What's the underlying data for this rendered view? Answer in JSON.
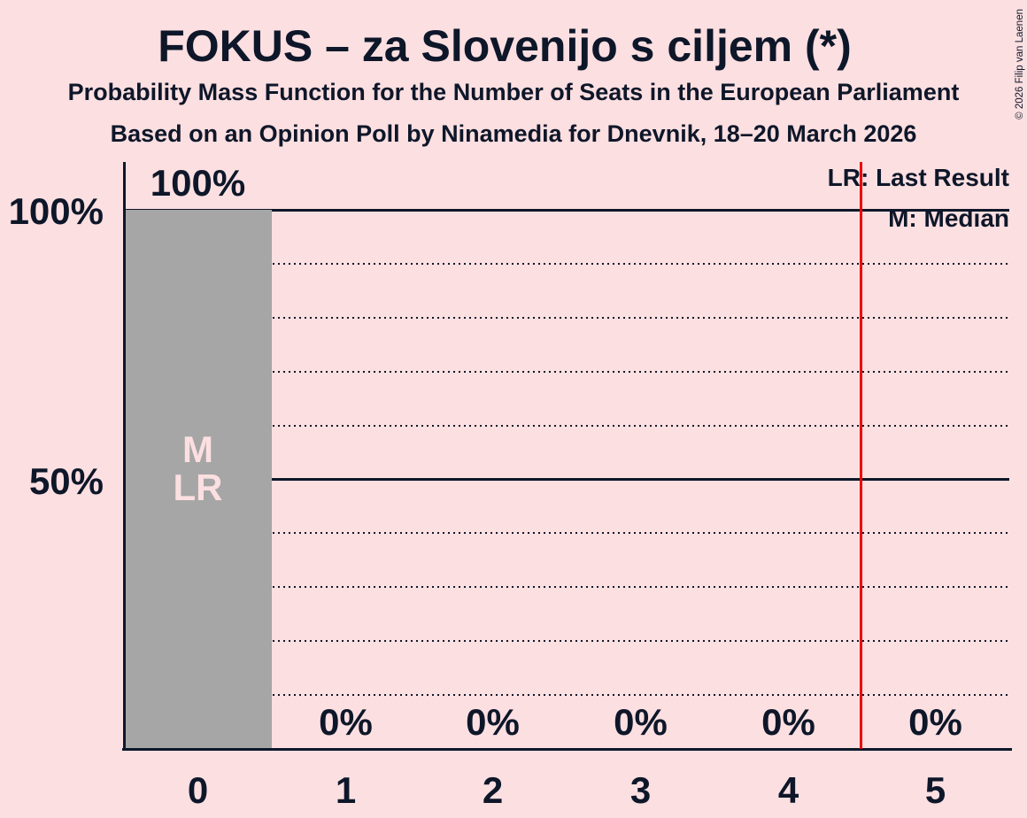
{
  "meta": {
    "copyright": "© 2026 Filip van Laenen"
  },
  "header": {
    "title": "FOKUS – za Slovenijo s ciljem (*)",
    "subtitle1": "Probability Mass Function for the Number of Seats in the European Parliament",
    "subtitle2": "Based on an Opinion Poll by Ninamedia for Dnevnik, 18–20 March 2026"
  },
  "legend": {
    "lr_label": "LR: Last Result",
    "m_label": "M: Median"
  },
  "chart_data": {
    "type": "bar",
    "title": "FOKUS – za Slovenijo s ciljem (*)",
    "xlabel": "",
    "ylabel": "",
    "categories": [
      "0",
      "1",
      "2",
      "3",
      "4",
      "5"
    ],
    "values": [
      100,
      0,
      0,
      0,
      0,
      0
    ],
    "value_labels": [
      "100%",
      "0%",
      "0%",
      "0%",
      "0%",
      "0%"
    ],
    "ylim": [
      0,
      100
    ],
    "ytick_values": [
      100,
      50
    ],
    "ytick_labels": [
      "100%",
      "50%"
    ],
    "solid_gridlines_percent": [
      100,
      50
    ],
    "dotted_gridlines_percent": [
      90,
      80,
      70,
      60,
      40,
      30,
      20,
      10
    ],
    "bar_annotations": {
      "median": "M",
      "last_result": "LR",
      "bar_index": 0
    },
    "median_seats": 0,
    "last_result_seats": 0,
    "red_line": {
      "position_seats": 4.5,
      "color": "#ee0000"
    },
    "legend_position": "top-right",
    "colors": {
      "background": "#fcdfe1",
      "bar": "#a6a6a6",
      "text": "#0e1729",
      "bar_label": "#fcdfe1",
      "red_line": "#ee0000"
    }
  }
}
